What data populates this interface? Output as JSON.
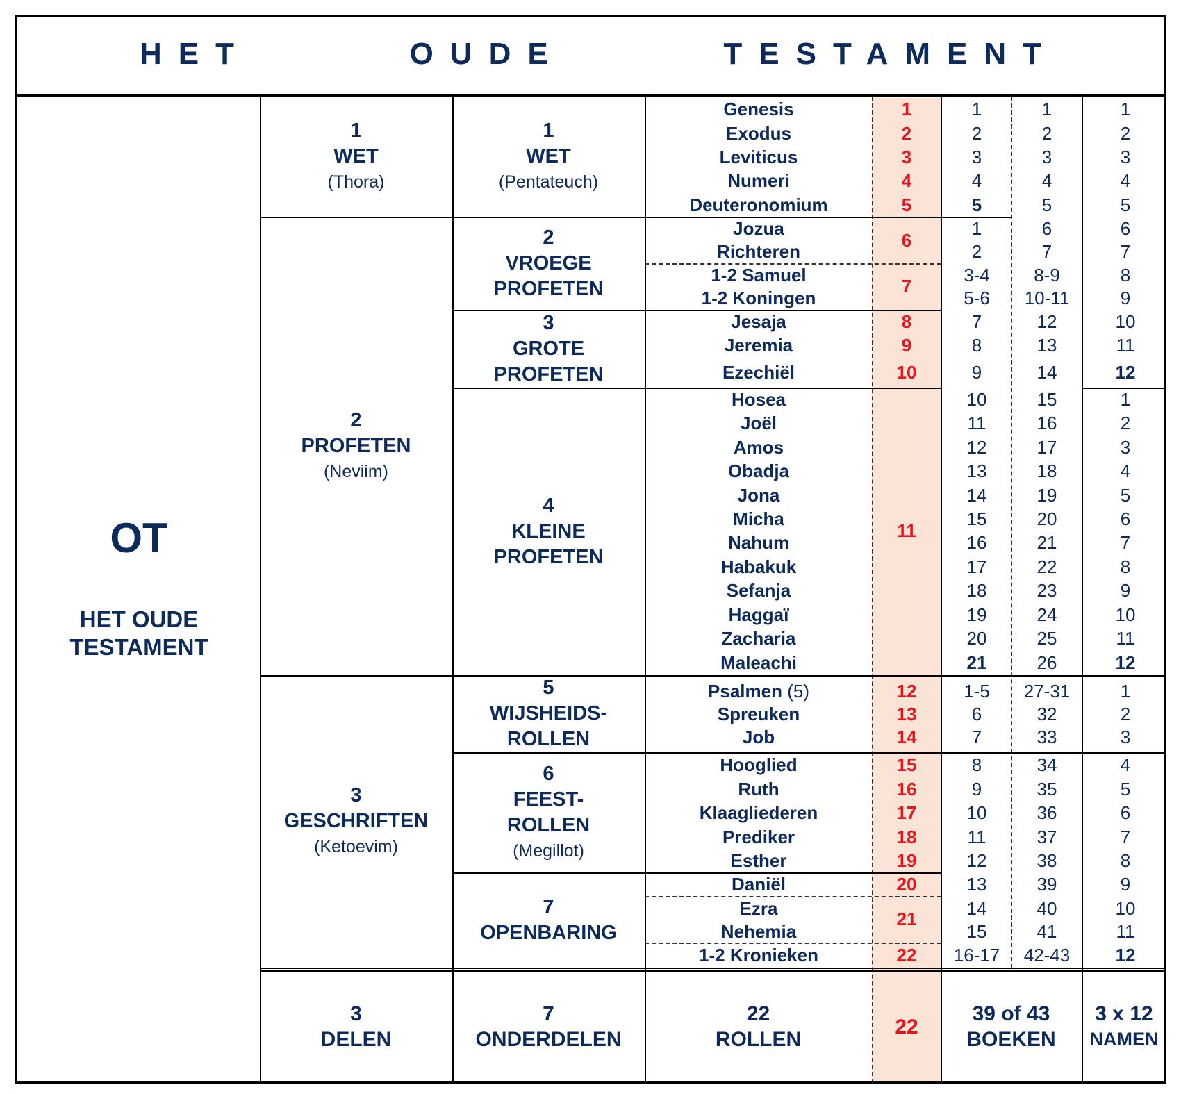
{
  "title": "HET   OUDE   TESTAMENT",
  "ot": {
    "abbr": "OT",
    "line1": "HET OUDE",
    "line2": "TESTAMENT"
  },
  "delen": [
    {
      "num": "1",
      "name": "WET",
      "sub": "(Thora)"
    },
    {
      "num": "2",
      "name": "PROFETEN",
      "sub": "(Neviim)"
    },
    {
      "num": "3",
      "name": "GESCHRIFTEN",
      "sub": "(Ketoevim)"
    }
  ],
  "onderdelen": [
    {
      "num": "1",
      "line1": "WET",
      "line2": "",
      "sub": "(Pentateuch)"
    },
    {
      "num": "2",
      "line1": "VROEGE",
      "line2": "PROFETEN",
      "sub": ""
    },
    {
      "num": "3",
      "line1": "GROTE",
      "line2": "PROFETEN",
      "sub": ""
    },
    {
      "num": "4",
      "line1": "KLEINE",
      "line2": "PROFETEN",
      "sub": ""
    },
    {
      "num": "5",
      "line1": "WIJSHEIDS-",
      "line2": "ROLLEN",
      "sub": ""
    },
    {
      "num": "6",
      "line1": "FEEST-",
      "line2": "ROLLEN",
      "sub": "(Megillot)"
    },
    {
      "num": "7",
      "line1": "OPENBARING",
      "line2": "",
      "sub": ""
    }
  ],
  "books": [
    {
      "name": "Genesis",
      "extra": "",
      "c1": "1",
      "c2": "1",
      "c3": "1"
    },
    {
      "name": "Exodus",
      "extra": "",
      "c1": "2",
      "c2": "2",
      "c3": "2"
    },
    {
      "name": "Leviticus",
      "extra": "",
      "c1": "3",
      "c2": "3",
      "c3": "3"
    },
    {
      "name": "Numeri",
      "extra": "",
      "c1": "4",
      "c2": "4",
      "c3": "4"
    },
    {
      "name": "Deuteronomium",
      "extra": "",
      "c1": "5",
      "c2": "5",
      "c3": "5"
    },
    {
      "name": "Jozua",
      "extra": "",
      "c1": "1",
      "c2": "6",
      "c3": "6"
    },
    {
      "name": "Richteren",
      "extra": "",
      "c1": "2",
      "c2": "7",
      "c3": "7"
    },
    {
      "name": "1-2 Samuel",
      "extra": "",
      "c1": "3-4",
      "c2": "8-9",
      "c3": "8"
    },
    {
      "name": "1-2 Koningen",
      "extra": "",
      "c1": "5-6",
      "c2": "10-11",
      "c3": "9"
    },
    {
      "name": "Jesaja",
      "extra": "",
      "c1": "7",
      "c2": "12",
      "c3": "10"
    },
    {
      "name": "Jeremia",
      "extra": "",
      "c1": "8",
      "c2": "13",
      "c3": "11"
    },
    {
      "name": "Ezechiël",
      "extra": "",
      "c1": "9",
      "c2": "14",
      "c3": "12"
    },
    {
      "name": "Hosea",
      "extra": "",
      "c1": "10",
      "c2": "15",
      "c3": "1"
    },
    {
      "name": "Joël",
      "extra": "",
      "c1": "11",
      "c2": "16",
      "c3": "2"
    },
    {
      "name": "Amos",
      "extra": "",
      "c1": "12",
      "c2": "17",
      "c3": "3"
    },
    {
      "name": "Obadja",
      "extra": "",
      "c1": "13",
      "c2": "18",
      "c3": "4"
    },
    {
      "name": "Jona",
      "extra": "",
      "c1": "14",
      "c2": "19",
      "c3": "5"
    },
    {
      "name": "Micha",
      "extra": "",
      "c1": "15",
      "c2": "20",
      "c3": "6"
    },
    {
      "name": "Nahum",
      "extra": "",
      "c1": "16",
      "c2": "21",
      "c3": "7"
    },
    {
      "name": "Habakuk",
      "extra": "",
      "c1": "17",
      "c2": "22",
      "c3": "8"
    },
    {
      "name": "Sefanja",
      "extra": "",
      "c1": "18",
      "c2": "23",
      "c3": "9"
    },
    {
      "name": "Haggaï",
      "extra": "",
      "c1": "19",
      "c2": "24",
      "c3": "10"
    },
    {
      "name": "Zacharia",
      "extra": "",
      "c1": "20",
      "c2": "25",
      "c3": "11"
    },
    {
      "name": "Maleachi",
      "extra": "",
      "c1": "21",
      "c2": "26",
      "c3": "12"
    },
    {
      "name": "Psalmen",
      "extra": "(5)",
      "c1": "1-5",
      "c2": "27-31",
      "c3": "1"
    },
    {
      "name": "Spreuken",
      "extra": "",
      "c1": "6",
      "c2": "32",
      "c3": "2"
    },
    {
      "name": "Job",
      "extra": "",
      "c1": "7",
      "c2": "33",
      "c3": "3"
    },
    {
      "name": "Hooglied",
      "extra": "",
      "c1": "8",
      "c2": "34",
      "c3": "4"
    },
    {
      "name": "Ruth",
      "extra": "",
      "c1": "9",
      "c2": "35",
      "c3": "5"
    },
    {
      "name": "Klaagliederen",
      "extra": "",
      "c1": "10",
      "c2": "36",
      "c3": "6"
    },
    {
      "name": "Prediker",
      "extra": "",
      "c1": "11",
      "c2": "37",
      "c3": "7"
    },
    {
      "name": "Esther",
      "extra": "",
      "c1": "12",
      "c2": "38",
      "c3": "8"
    },
    {
      "name": "Daniël",
      "extra": "",
      "c1": "13",
      "c2": "39",
      "c3": "9"
    },
    {
      "name": "Ezra",
      "extra": "",
      "c1": "14",
      "c2": "40",
      "c3": "10"
    },
    {
      "name": "Nehemia",
      "extra": "",
      "c1": "15",
      "c2": "41",
      "c3": "11"
    },
    {
      "name": "1-2 Kronieken",
      "extra": "",
      "c1": "16-17",
      "c2": "42-43",
      "c3": "12"
    }
  ],
  "rollen": [
    "1",
    "2",
    "3",
    "4",
    "5",
    "6",
    "7",
    "8",
    "9",
    "10",
    "11",
    "12",
    "13",
    "14",
    "15",
    "16",
    "17",
    "18",
    "19",
    "20",
    "21",
    "22"
  ],
  "totals": {
    "delen": [
      "3",
      "DELEN"
    ],
    "onderdelen": [
      "7",
      "ONDERDELEN"
    ],
    "rollen": [
      "22",
      "ROLLEN"
    ],
    "rollen_red": "22",
    "boeken": [
      "39 of 43",
      "BOEKEN"
    ],
    "namen": [
      "3 x 12",
      "NAMEN"
    ]
  },
  "colors": {
    "text": "#0d2a5c",
    "red": "#e8141e",
    "pink": "#fbe3d6"
  }
}
